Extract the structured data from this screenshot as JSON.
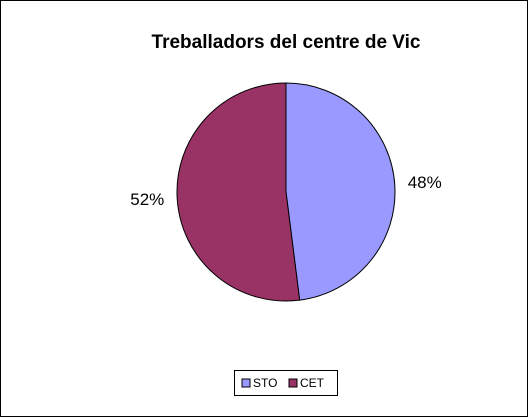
{
  "chart_data": {
    "type": "pie",
    "title": "Treballadors del centre de Vic",
    "categories": [
      "STO",
      "CET"
    ],
    "values": [
      48,
      52
    ],
    "value_labels": [
      "48%",
      "52%"
    ],
    "colors": [
      "#9999ff",
      "#993366"
    ]
  }
}
